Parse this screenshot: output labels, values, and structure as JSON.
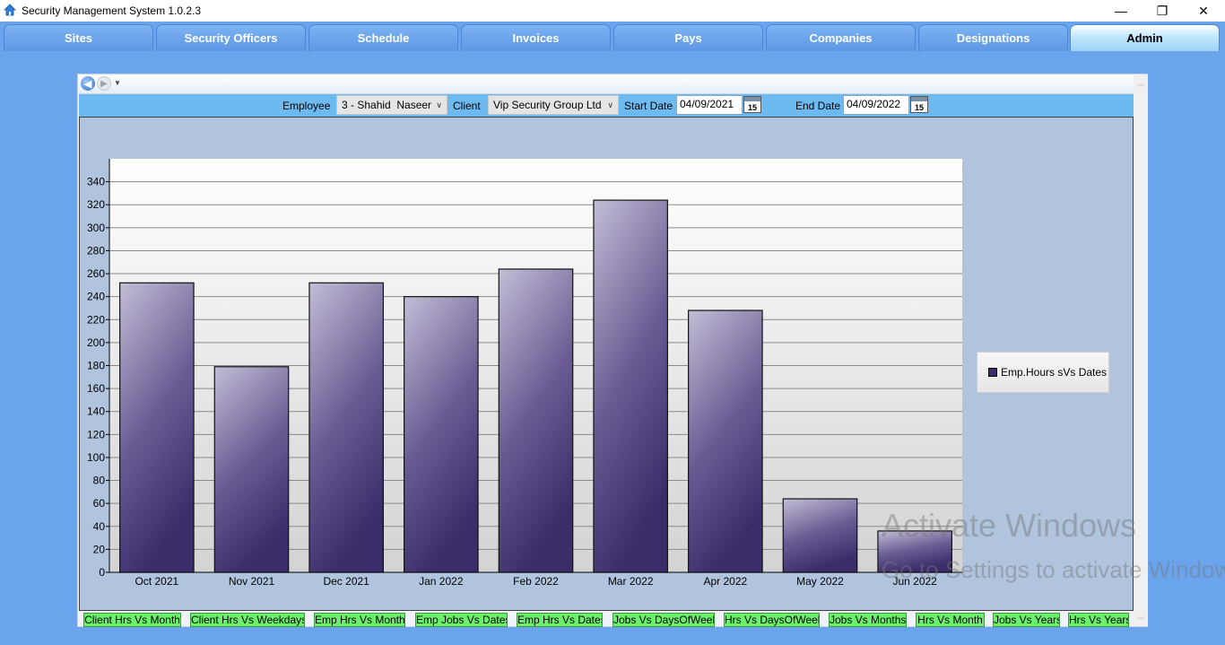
{
  "window": {
    "title": "Security Management System 1.0.2.3",
    "minimize": "—",
    "restore": "❐",
    "close": "✕"
  },
  "tabs": [
    "Sites",
    "Security Officers",
    "Schedule",
    "Invoices",
    "Pays",
    "Companies",
    "Designations",
    "Admin"
  ],
  "active_tab": "Admin",
  "filters": {
    "employee_label": "Employee",
    "employee_value": "3 - Shahid  Naseer",
    "client_label": "Client",
    "client_value": "Vip Security Group Ltd",
    "start_label": "Start Date",
    "start_value": "04/09/2021",
    "end_label": "End Date",
    "end_value": "04/09/2022",
    "calendar_glyph": "15"
  },
  "chart_data": {
    "type": "bar",
    "categories": [
      "Oct 2021",
      "Nov 2021",
      "Dec 2021",
      "Jan 2022",
      "Feb 2022",
      "Mar 2022",
      "Apr 2022",
      "May 2022",
      "Jun 2022"
    ],
    "series": [
      {
        "name": "Emp.Hours sVs Dates",
        "values": [
          252,
          179,
          252,
          240,
          264,
          324,
          228,
          64,
          36
        ]
      }
    ],
    "yticks": [
      0,
      20,
      40,
      60,
      80,
      100,
      120,
      140,
      160,
      180,
      200,
      220,
      240,
      260,
      280,
      300,
      320,
      340
    ],
    "ylim": [
      0,
      360
    ],
    "grid": true,
    "legend_position": "right",
    "bar_color": "#3a2d6a"
  },
  "watermark": {
    "line1": "Activate Windows",
    "line2": "Go to Settings to activate Windows."
  },
  "report_buttons": [
    "Client Hrs Vs Month",
    "Client Hrs Vs Weekdays",
    "Emp Hrs Vs Month",
    "Emp Jobs Vs Dates",
    "Emp Hrs Vs Dates",
    "Jobs Vs DaysOfWeek",
    "Hrs Vs DaysOfWeek",
    "Jobs Vs Months",
    "Hrs Vs Month",
    "Jobs Vs Years",
    "Hrs Vs Years"
  ]
}
